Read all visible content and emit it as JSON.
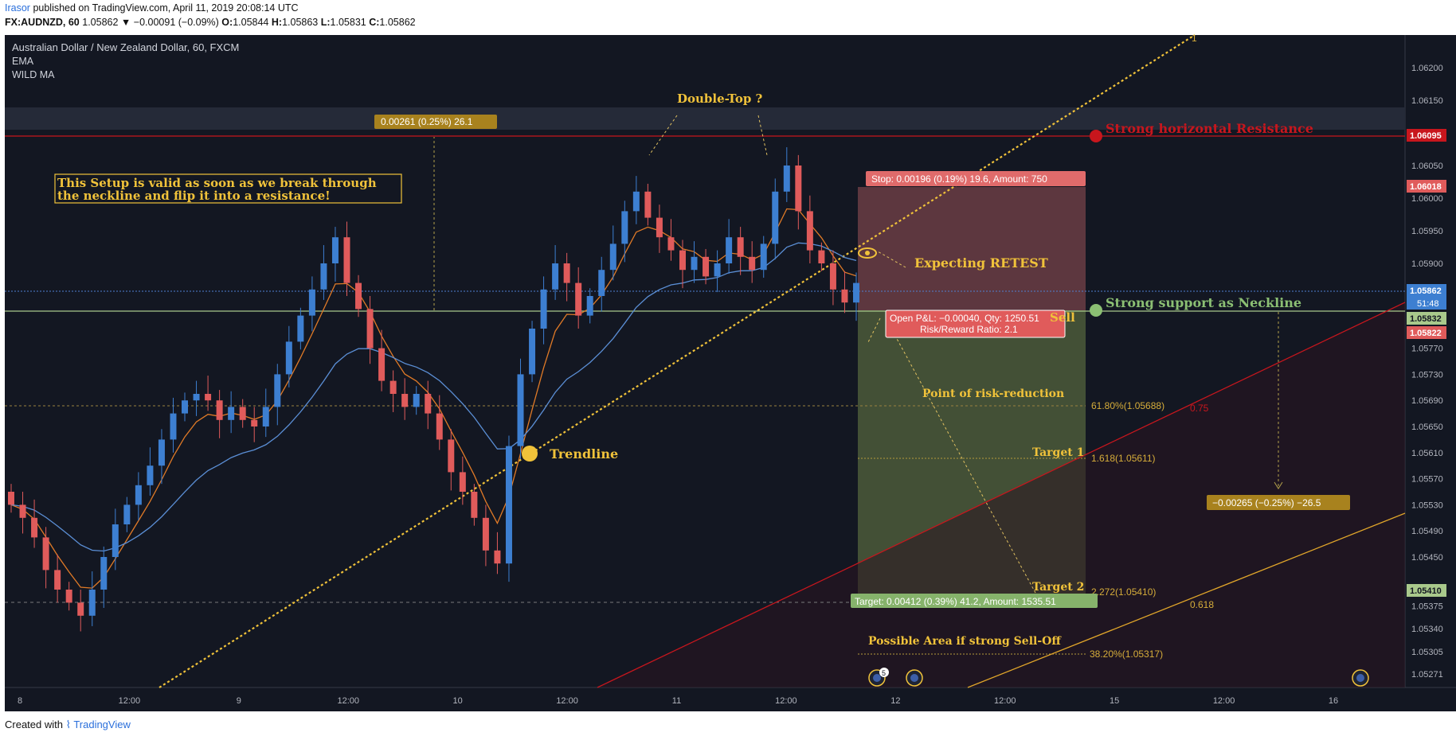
{
  "header": {
    "user": "Irasor",
    "published": "published on TradingView.com, April 11, 2019 20:08:14 UTC",
    "symbol": "FX:AUDNZD, 60",
    "last": "1.05862",
    "change": "−0.00091 (−0.09%)",
    "o_label": "O:",
    "o": "1.05844",
    "h_label": "H:",
    "h": "1.05863",
    "l_label": "L:",
    "l": "1.05831",
    "c_label": "C:",
    "c": "1.05862"
  },
  "legend": {
    "title": "Australian Dollar / New Zealand Dollar, 60, FXCM",
    "ind1": "EMA",
    "ind2": "WILD MA"
  },
  "annotations": {
    "setup1": "This Setup is valid as soon as we break through",
    "setup2": "the neckline and flip it into a resistance!",
    "double_top": "Double-Top ?",
    "measure_up": "0.00261 (0.25%) 26.1",
    "resistance": "Strong horizontal Resistance",
    "support": "Strong support as Neckline",
    "retest": "Expecting RETEST",
    "trendline": "Trendline",
    "stop": "Stop: 0.00196 (0.19%) 19.6, Amount: 750",
    "pnl1": "Open P&L: −0.00040, Qty: 1250.51",
    "pnl2": "Risk/Reward Ratio: 2.1",
    "sell": "Sell",
    "risk_reduction": "Point of risk-reduction",
    "fib_618": "61.80%(1.05688)",
    "fib_075": "0.75",
    "target1": "Target 1",
    "fib_1618": "1.618(1.05611)",
    "target2": "Target 2",
    "fib_2272": "2.272(1.05410)",
    "fib_0618": "0.618",
    "target_box": "Target: 0.00412 (0.39%) 41.2, Amount: 1535.51",
    "measure_down": "−0.00265 (−0.25%) −26.5",
    "selloff": "Possible Area if strong Sell-Off",
    "fib_382": "38.20%(1.05317)",
    "fan_1": "1",
    "event_count": "5"
  },
  "price_badges": {
    "resistance": "1.06095",
    "stop": "1.06018",
    "last": "1.05862",
    "timer": "51:48",
    "neck": "1.05832",
    "entry": "1.05822",
    "target": "1.05410"
  },
  "colors": {
    "bg": "#131722",
    "up": "#3d7fd1",
    "down": "#e05b5b",
    "ema": "#e07a27",
    "wild": "#5b8fd6",
    "yellow": "#f0c23a",
    "resist": "#c8161d",
    "support": "#8bbf73"
  },
  "chart_data": {
    "type": "candlestick",
    "title": "Australian Dollar / New Zealand Dollar, 60, FXCM",
    "ylim": [
      1.0525,
      1.0625
    ],
    "y_ticks": [
      "1.06200",
      "1.06150",
      "1.06050",
      "1.06000",
      "1.05950",
      "1.05900",
      "1.05770",
      "1.05730",
      "1.05690",
      "1.05650",
      "1.05610",
      "1.05570",
      "1.05530",
      "1.05490",
      "1.05450",
      "1.05375",
      "1.05340",
      "1.05305",
      "1.05271"
    ],
    "x_ticks": [
      "8",
      "12:00",
      "9",
      "12:00",
      "10",
      "12:00",
      "11",
      "12:00",
      "12",
      "12:00",
      "15",
      "12:00",
      "16"
    ],
    "levels": {
      "resistance": 1.06095,
      "neckline": 1.05832,
      "stop": 1.06018,
      "entry": 1.05822,
      "target": 1.0541,
      "fib_618": 1.05688,
      "fib_1618": 1.05611,
      "fib_382": 1.05317
    },
    "close_path": [
      1.0553,
      1.0551,
      1.0548,
      1.0543,
      1.054,
      1.0538,
      1.0536,
      1.054,
      1.0545,
      1.055,
      1.0553,
      1.0556,
      1.0559,
      1.0563,
      1.0567,
      1.0569,
      1.057,
      1.0569,
      1.0566,
      1.0568,
      1.0566,
      1.0565,
      1.0568,
      1.0573,
      1.0578,
      1.0582,
      1.0586,
      1.059,
      1.0594,
      1.0587,
      1.0583,
      1.0577,
      1.0572,
      1.057,
      1.0568,
      1.057,
      1.0567,
      1.0563,
      1.0558,
      1.0555,
      1.0551,
      1.0546,
      1.0544,
      1.0562,
      1.0573,
      1.058,
      1.0586,
      1.059,
      1.0587,
      1.0582,
      1.0585,
      1.0589,
      1.0593,
      1.0598,
      1.0601,
      1.0597,
      1.0594,
      1.0592,
      1.0589,
      1.0591,
      1.0588,
      1.059,
      1.0594,
      1.0591,
      1.0589,
      1.0593,
      1.0601,
      1.0605,
      1.0598,
      1.0592,
      1.059,
      1.0586,
      1.0584,
      1.0587
    ]
  }
}
